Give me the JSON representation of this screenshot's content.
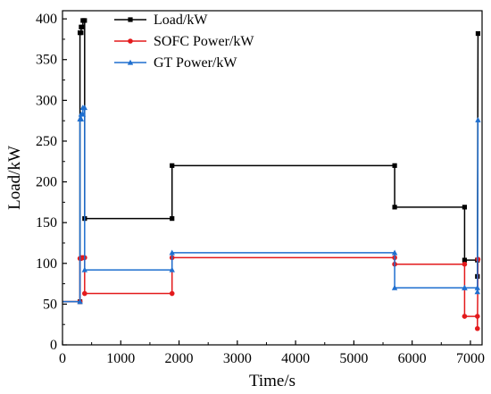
{
  "chart_data": {
    "type": "line",
    "xlabel": "Time/s",
    "ylabel": "Load/kW",
    "xlim": [
      0,
      7200
    ],
    "ylim": [
      0,
      410
    ],
    "xticks": [
      0,
      1000,
      2000,
      3000,
      4000,
      5000,
      6000,
      7000
    ],
    "yticks": [
      0,
      50,
      100,
      150,
      200,
      250,
      300,
      350,
      400
    ],
    "grid": false,
    "legend_position": "top-left",
    "series": [
      {
        "name": "Load/kW",
        "color": "#000000",
        "marker": "square",
        "x": [
          0,
          300,
          300,
          320,
          320,
          350,
          350,
          380,
          380,
          1880,
          1880,
          5700,
          5700,
          6900,
          6900,
          7120,
          7120,
          7130
        ],
        "y": [
          53,
          53,
          383,
          383,
          390,
          390,
          398,
          398,
          155,
          155,
          220,
          220,
          169,
          169,
          104,
          104,
          84,
          382
        ]
      },
      {
        "name": "SOFC Power/kW",
        "color": "#e31a1c",
        "marker": "circle",
        "x": [
          0,
          300,
          300,
          320,
          320,
          350,
          350,
          380,
          380,
          1880,
          1880,
          5700,
          5700,
          6900,
          6900,
          7120,
          7120,
          7130
        ],
        "y": [
          53,
          53,
          106,
          106,
          107,
          107,
          107,
          107,
          63,
          63,
          107,
          107,
          99,
          99,
          35,
          35,
          20,
          105
        ]
      },
      {
        "name": "GT Power/kW",
        "color": "#1f6fcf",
        "marker": "triangle",
        "x": [
          0,
          300,
          300,
          320,
          320,
          350,
          350,
          380,
          380,
          1880,
          1880,
          5700,
          5700,
          6900,
          6900,
          7120,
          7120,
          7130
        ],
        "y": [
          53,
          53,
          277,
          277,
          283,
          283,
          291,
          291,
          92,
          92,
          113,
          113,
          70,
          70,
          70,
          70,
          65,
          276
        ]
      }
    ]
  }
}
